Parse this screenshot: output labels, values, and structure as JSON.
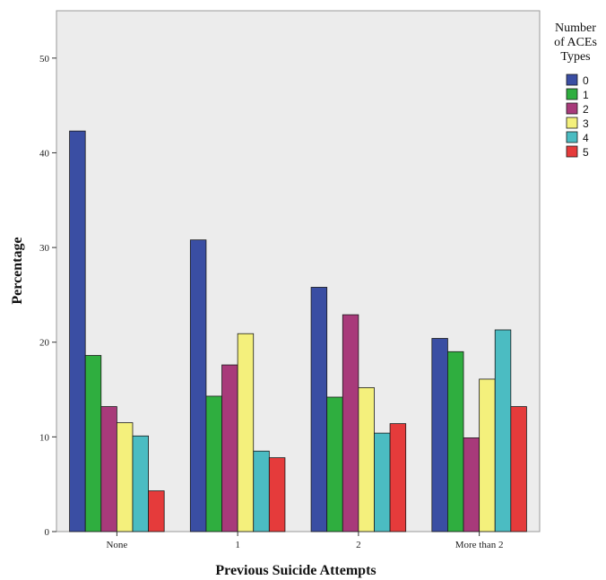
{
  "chart_data": {
    "type": "bar",
    "xlabel": "Previous Suicide Attempts",
    "ylabel": "Percentage",
    "categories": [
      "None",
      "1",
      "2",
      "More than 2"
    ],
    "yticks": [
      0,
      10,
      20,
      30,
      40,
      50
    ],
    "ylim": [
      0,
      55
    ],
    "grid": false,
    "legend": {
      "title_lines": [
        "Number",
        "of ACEs",
        "Types"
      ],
      "placement": "right"
    },
    "series": [
      {
        "name": "0",
        "color": "#3a4ea3",
        "values": [
          42.3,
          30.8,
          25.8,
          20.4
        ]
      },
      {
        "name": "1",
        "color": "#2fae3f",
        "values": [
          18.6,
          14.3,
          14.2,
          19.0
        ]
      },
      {
        "name": "2",
        "color": "#a83a7a",
        "values": [
          13.2,
          17.6,
          22.9,
          9.9
        ]
      },
      {
        "name": "3",
        "color": "#f4f07c",
        "values": [
          11.5,
          20.9,
          15.2,
          16.1
        ]
      },
      {
        "name": "4",
        "color": "#4bbcc2",
        "values": [
          10.1,
          8.5,
          10.4,
          21.3
        ]
      },
      {
        "name": "5",
        "color": "#e53b3b",
        "values": [
          4.3,
          7.8,
          11.4,
          13.2
        ]
      }
    ]
  }
}
